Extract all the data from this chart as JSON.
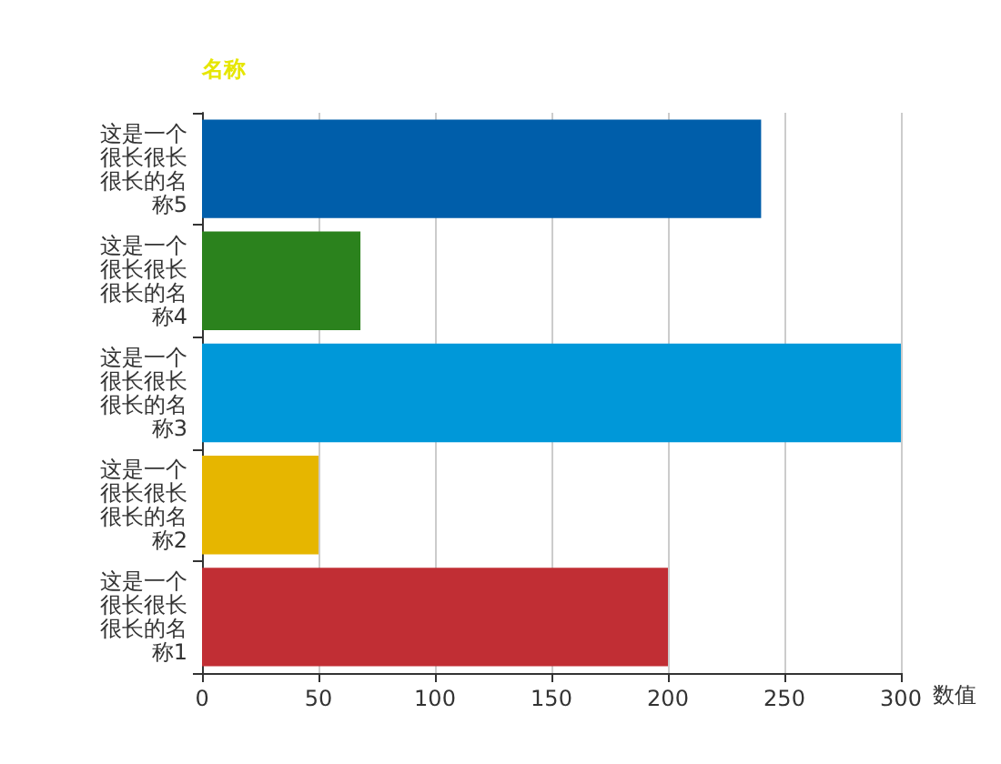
{
  "chart_data": {
    "type": "bar",
    "orientation": "horizontal",
    "xlabel": "数值",
    "ylabel": "名称",
    "categories": [
      "这是一个很长很长很长的名称5",
      "这是一个很长很长很长的名称4",
      "这是一个很长很长很长的名称3",
      "这是一个很长很长很长的名称2",
      "这是一个很长很长很长的名称1"
    ],
    "values": [
      240,
      68,
      300,
      50,
      200
    ],
    "colors": [
      "#005eaa",
      "#2b821d",
      "#0098d9",
      "#e6b600",
      "#c12e34"
    ],
    "xlim": [
      0,
      300
    ],
    "xticks": [
      0,
      50,
      100,
      150,
      200,
      250,
      300
    ],
    "grid": "x"
  }
}
